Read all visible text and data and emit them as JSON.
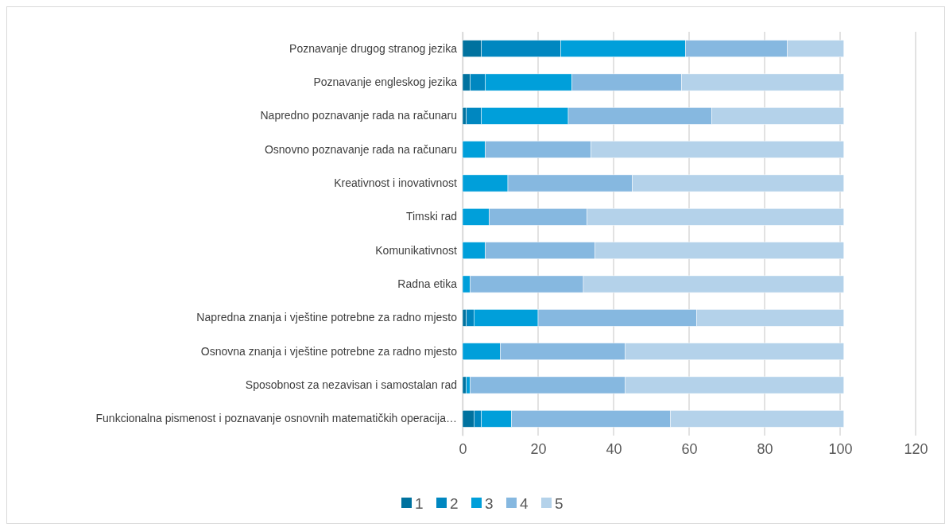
{
  "chart_data": {
    "type": "bar",
    "orientation": "horizontal",
    "stacked": true,
    "categories": [
      "Poznavanje drugog stranog jezika",
      "Poznavanje engleskog jezika",
      "Napredno poznavanje rada na računaru",
      "Osnovno poznavanje rada na računaru",
      "Kreativnost i inovativnost",
      "Timski rad",
      "Komunikativnost",
      "Radna etika",
      "Napredna znanja i vještine potrebne za radno mjesto",
      "Osnovna znanja i vještine potrebne za radno mjesto",
      "Sposobnost za nezavisan i samostalan rad",
      "Funkcionalna pismenost i poznavanje osnovnih matematičkih operacija…"
    ],
    "series": [
      {
        "name": "1",
        "color": "#00729f",
        "values": [
          5,
          2,
          1,
          0,
          0,
          0,
          0,
          0,
          1,
          0,
          1,
          3
        ]
      },
      {
        "name": "2",
        "color": "#0087c0",
        "values": [
          21,
          4,
          4,
          0,
          0,
          0,
          0,
          0,
          2,
          0,
          0,
          2
        ]
      },
      {
        "name": "3",
        "color": "#009fda",
        "values": [
          33,
          23,
          23,
          6,
          12,
          7,
          6,
          2,
          17,
          10,
          1,
          8
        ]
      },
      {
        "name": "4",
        "color": "#86b8e0",
        "values": [
          27,
          29,
          38,
          28,
          33,
          26,
          29,
          30,
          42,
          33,
          41,
          42
        ]
      },
      {
        "name": "5",
        "color": "#b4d2ea",
        "values": [
          15,
          43,
          35,
          67,
          56,
          68,
          66,
          69,
          39,
          58,
          58,
          46
        ]
      }
    ],
    "xlim": [
      0,
      120
    ],
    "xticks": [
      0,
      20,
      40,
      60,
      80,
      100,
      120
    ],
    "grid": "x",
    "legend": "bottom"
  }
}
